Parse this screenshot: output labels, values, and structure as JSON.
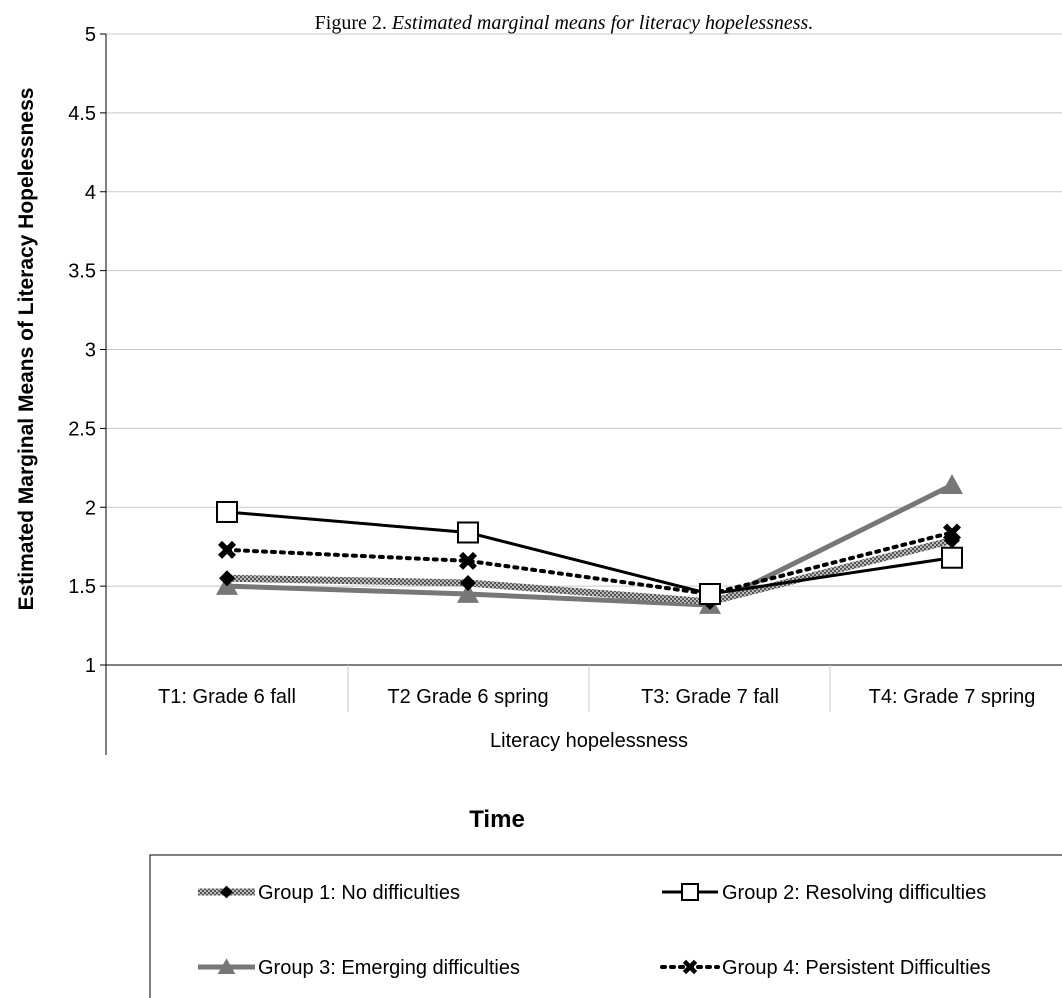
{
  "chart_data": {
    "type": "line",
    "title_prefix": "Figure 2. ",
    "title": "Estimated marginal means for literacy hopelessness.",
    "ylabel": "Estimated Marginal Means of Literacy Hopelessness",
    "xgroup_label": "Literacy hopelessness",
    "xlabel": "Time",
    "ylim": [
      1,
      5
    ],
    "yticks": [
      "1",
      "1.5",
      "2",
      "2.5",
      "3",
      "3.5",
      "4",
      "4.5",
      "5"
    ],
    "categories": [
      "T1: Grade 6 fall",
      "T2 Grade 6 spring",
      "T3: Grade 7 fall",
      "T4: Grade 7 spring"
    ],
    "grid": true,
    "legend_position": "bottom",
    "series": [
      {
        "name": "Group 1: No difficulties",
        "values": [
          1.55,
          1.52,
          1.4,
          1.79
        ],
        "marker": "diamond",
        "line": "hatched",
        "color": "#777777"
      },
      {
        "name": "Group 2: Resolving difficulties",
        "values": [
          1.97,
          1.84,
          1.45,
          1.68
        ],
        "marker": "square",
        "line": "solid",
        "color": "#000000"
      },
      {
        "name": "Group 3: Emerging difficulties",
        "values": [
          1.5,
          1.45,
          1.38,
          2.14
        ],
        "marker": "triangle",
        "line": "solid",
        "color": "#666666"
      },
      {
        "name": "Group 4: Persistent Difficulties",
        "values": [
          1.73,
          1.66,
          1.45,
          1.84
        ],
        "marker": "x",
        "line": "dotted",
        "color": "#000000"
      }
    ]
  }
}
